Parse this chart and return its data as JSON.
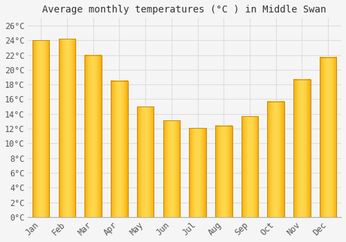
{
  "title": "Average monthly temperatures (°C ) in Middle Swan",
  "months": [
    "Jan",
    "Feb",
    "Mar",
    "Apr",
    "May",
    "Jun",
    "Jul",
    "Aug",
    "Sep",
    "Oct",
    "Nov",
    "Dec"
  ],
  "values": [
    24.0,
    24.2,
    22.0,
    18.5,
    15.0,
    13.1,
    12.1,
    12.4,
    13.7,
    15.7,
    18.7,
    21.7
  ],
  "bar_color_center": "#FFD84D",
  "bar_color_edge": "#F5A800",
  "bar_outline_color": "#C8880A",
  "ylim": [
    0,
    27
  ],
  "ytick_step": 2,
  "background_color": "#f5f5f5",
  "plot_bg_color": "#f5f5f5",
  "grid_color": "#dddddd",
  "title_fontsize": 10,
  "tick_fontsize": 8.5,
  "bar_width": 0.65
}
